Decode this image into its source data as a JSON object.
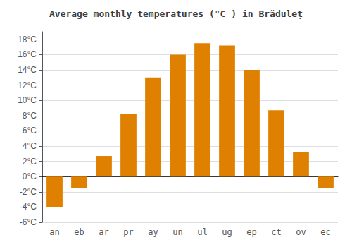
{
  "chart_data": {
    "type": "bar",
    "title": "Average monthly temperatures (°C ) in Brăduleț",
    "categories": [
      "an",
      "eb",
      "ar",
      "pr",
      "ay",
      "un",
      "ul",
      "ug",
      "ep",
      "ct",
      "ov",
      "ec"
    ],
    "values": [
      -4.0,
      -1.5,
      2.7,
      8.2,
      13.0,
      16.0,
      17.5,
      17.2,
      14.0,
      8.7,
      3.2,
      -1.5
    ],
    "color": "#E08000",
    "ylim": [
      -6,
      19
    ],
    "yticks": [
      {
        "value": -6,
        "label": "-6°C"
      },
      {
        "value": -4,
        "label": "-4°C"
      },
      {
        "value": -2,
        "label": "-2°C"
      },
      {
        "value": 0,
        "label": "0°C"
      },
      {
        "value": 2,
        "label": "2°C"
      },
      {
        "value": 4,
        "label": "4°C"
      },
      {
        "value": 6,
        "label": "6°C"
      },
      {
        "value": 8,
        "label": "8°C"
      },
      {
        "value": 10,
        "label": "10°C"
      },
      {
        "value": 12,
        "label": "12°C"
      },
      {
        "value": 14,
        "label": "14°C"
      },
      {
        "value": 16,
        "label": "16°C"
      },
      {
        "value": 18,
        "label": "18°C"
      }
    ],
    "grid": true
  }
}
